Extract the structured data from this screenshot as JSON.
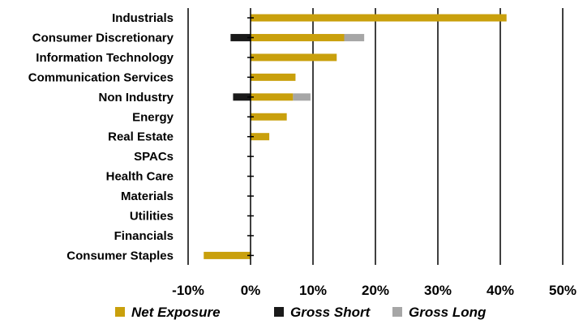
{
  "chart_data": {
    "type": "bar",
    "orientation": "horizontal",
    "stacked": true,
    "categories": [
      "Industrials",
      "Consumer Discretionary",
      "Information Technology",
      "Communication Services",
      "Non Industry",
      "Energy",
      "Real Estate",
      "SPACs",
      "Health Care",
      "Materials",
      "Utilities",
      "Financials",
      "Consumer Staples"
    ],
    "series": [
      {
        "name": "Net Exposure",
        "color": "#c9a00c",
        "values": [
          41.0,
          15.0,
          13.8,
          7.2,
          6.8,
          5.8,
          3.0,
          0,
          0,
          0,
          0,
          0,
          -7.5
        ]
      },
      {
        "name": "Gross Short",
        "color": "#1a1a1a",
        "values": [
          0,
          -3.2,
          0,
          0,
          -2.8,
          0,
          0,
          0,
          0,
          0,
          0,
          0,
          0
        ]
      },
      {
        "name": "Gross Long",
        "color": "#a6a6a6",
        "values": [
          0,
          3.2,
          0,
          0,
          2.8,
          0,
          0,
          0,
          0,
          0,
          0,
          0,
          0
        ]
      }
    ],
    "xlim": [
      -10,
      50
    ],
    "xticks": [
      -10,
      0,
      10,
      20,
      30,
      40,
      50
    ],
    "xtick_labels": [
      "-10%",
      "0%",
      "10%",
      "20%",
      "30%",
      "40%",
      "50%"
    ],
    "grid": "vertical",
    "legend_position": "bottom"
  }
}
